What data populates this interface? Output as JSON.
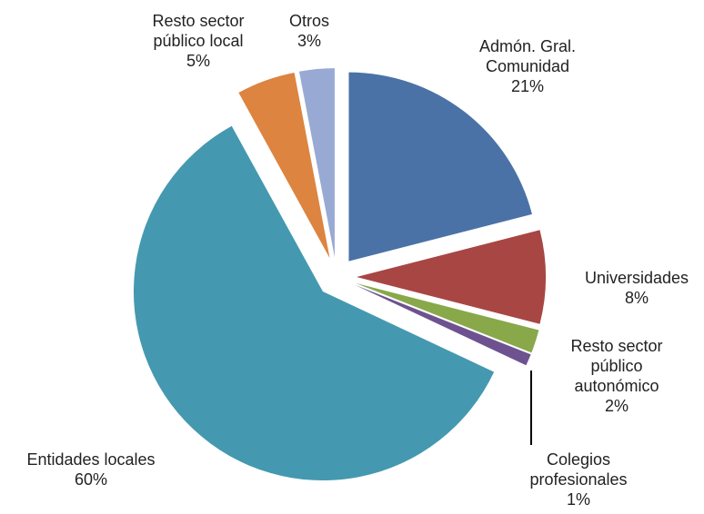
{
  "chart_data": {
    "type": "pie",
    "categories": [
      "Admón. Gral. Comunidad",
      "Universidades",
      "Resto sector público autonómico",
      "Colegios profesionales",
      "Entidades locales",
      "Resto sector público local",
      "Otros"
    ],
    "values": [
      21,
      8,
      2,
      1,
      60,
      5,
      3
    ],
    "value_labels": [
      "21%",
      "8%",
      "2%",
      "1%",
      "60%",
      "5%",
      "3%"
    ],
    "colors": [
      "#4a72a6",
      "#a84644",
      "#88a84a",
      "#6e5290",
      "#4499b0",
      "#dc8440",
      "#98aad4"
    ]
  }
}
